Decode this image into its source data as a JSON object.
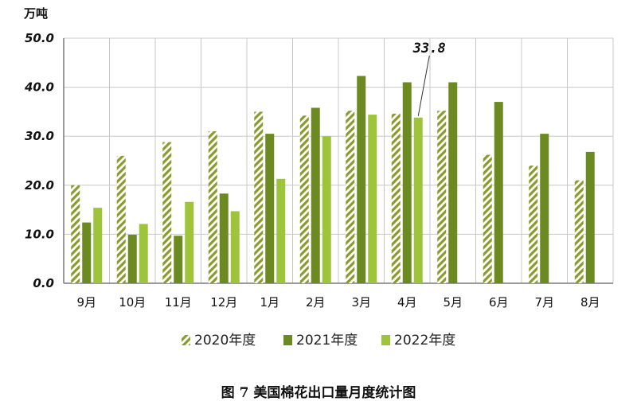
{
  "chart_data": {
    "type": "bar",
    "unit": "万吨",
    "categories": [
      "9月",
      "10月",
      "11月",
      "12月",
      "1月",
      "2月",
      "3月",
      "4月",
      "5月",
      "6月",
      "7月",
      "8月"
    ],
    "series": [
      {
        "name": "2020年度",
        "color": "#8a9a2c",
        "pattern": "diagonal-hatch",
        "values": [
          20.0,
          26.0,
          28.8,
          31.0,
          35.0,
          34.2,
          35.2,
          34.6,
          35.2,
          26.2,
          24.0,
          21.0
        ]
      },
      {
        "name": "2021年度",
        "color": "#6b8a22",
        "pattern": "solid",
        "values": [
          12.4,
          9.9,
          9.7,
          18.3,
          30.5,
          35.8,
          42.3,
          41.0,
          41.0,
          37.0,
          30.5,
          26.8
        ]
      },
      {
        "name": "2022年度",
        "color": "#9ec43c",
        "pattern": "solid",
        "values": [
          15.4,
          12.1,
          16.6,
          14.7,
          21.3,
          30.0,
          34.4,
          33.8,
          null,
          null,
          null,
          null
        ]
      }
    ],
    "ylim": [
      0,
      50
    ],
    "yticks": [
      "0.0",
      "10.0",
      "20.0",
      "30.0",
      "40.0",
      "50.0"
    ],
    "grid": true,
    "legend_position": "bottom",
    "annotation": {
      "text": "33.8",
      "category": "4月",
      "series": "2022年度"
    },
    "caption": "图 7   美国棉花出口量月度统计图"
  }
}
